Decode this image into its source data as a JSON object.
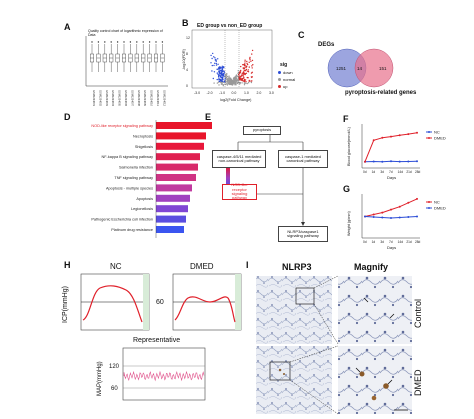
{
  "panels": {
    "A": {
      "label": "A",
      "title": "Quality control chart of logarithmic expression of Data",
      "samples": [
        "GSM1234001",
        "GSM1234002",
        "GSM1234003",
        "GSM1234004",
        "GSM1234005",
        "GSM1234006",
        "GSM1234007",
        "GSM1234008",
        "GSM1234009",
        "GSM1234010",
        "GSM1234011",
        "GSM1234012"
      ]
    },
    "B": {
      "label": "B",
      "title": "ED group vs non_ED group",
      "xlabel": "log2(Fold Change)",
      "ylabel": "-log10(FDR)",
      "legend_title": "sig",
      "legend_items": [
        {
          "name": "down",
          "color": "#2b4cd6"
        },
        {
          "name": "normal",
          "color": "#999999"
        },
        {
          "name": "up",
          "color": "#d62b2b"
        }
      ],
      "xticks": [
        "-3.0",
        "-2.0",
        "-1.0",
        "0.0",
        "1.0",
        "2.0",
        "3.0"
      ],
      "yticks": [
        "0",
        "4",
        "8",
        "12"
      ]
    },
    "C": {
      "label": "C",
      "set1_label": "DEGs",
      "set2_label": "pyroptosis-related genes",
      "left_count": "1251",
      "overlap_count": "14",
      "right_count": "151"
    },
    "D": {
      "label": "D",
      "pathways": [
        {
          "name": "NOD-like receptor signaling pathway",
          "highlight": true
        },
        {
          "name": "Necroptosis",
          "highlight": false
        },
        {
          "name": "Shigellosis",
          "highlight": false
        },
        {
          "name": "NF-kappa B signaling pathway",
          "highlight": false
        },
        {
          "name": "Salmonella infection",
          "highlight": false
        },
        {
          "name": "TNF signaling pathway",
          "highlight": false
        },
        {
          "name": "Apoptosis - multiple species",
          "highlight": false
        },
        {
          "name": "Apoptosis",
          "highlight": false
        },
        {
          "name": "Legionellosis",
          "highlight": false
        },
        {
          "name": "Pathogenic Escherichia coli infection",
          "highlight": false
        },
        {
          "name": "Platinum drug resistance",
          "highlight": false
        }
      ],
      "bar_values": [
        14,
        12.5,
        12,
        11,
        10.5,
        10,
        9,
        8.5,
        8,
        7.5,
        7
      ],
      "bar_colors": [
        "#e8152a",
        "#e8152a",
        "#e8173a",
        "#e02050",
        "#d82a6a",
        "#d03384",
        "#c03aa0",
        "#a040c0",
        "#8046d4",
        "#5a4ee0",
        "#3b55f0"
      ],
      "xmax": 15
    },
    "E": {
      "label": "E",
      "top": "pyroptosis",
      "left": "caspase-4/5/11 mediated non-canonical pathway",
      "right": "caspase-1 mediated canonical pathway",
      "nod": "NOD-like receptor signaling pathway",
      "nlrp3": "NLRP3/caspase1 signaling pathway"
    },
    "F": {
      "label": "F",
      "ylabel": "Blood glucose(mmol/L)",
      "xlabel": "Days",
      "legend": [
        "NC",
        "DMED"
      ],
      "days": [
        "0d",
        "1d",
        "3d",
        "7d",
        "14d",
        "21d",
        "28d"
      ],
      "nc": [
        5,
        5.2,
        5,
        5.3,
        5.1,
        5.2,
        5.3
      ],
      "dmed": [
        5,
        22,
        24,
        25,
        26,
        27,
        28
      ],
      "ymax": 35
    },
    "G": {
      "label": "G",
      "ylabel": "Weight (g/mm)",
      "xlabel": "Days",
      "legend": [
        "NC",
        "DMED"
      ],
      "days": [
        "0d",
        "1d",
        "3d",
        "7d",
        "14d",
        "21d",
        "28d"
      ],
      "nc": [
        220,
        240,
        260,
        290,
        320,
        360,
        400
      ],
      "dmed": [
        220,
        215,
        210,
        205,
        210,
        215,
        220
      ],
      "ymax": 450
    },
    "H": {
      "label": "H",
      "nc_title": "NC",
      "dmed_title": "DMED",
      "icp_label": "ICP(mmHg)",
      "icp_tick": "60",
      "rep_title": "Representative",
      "map_label": "MAP(mmHg)",
      "map_tick_hi": "120",
      "map_tick_lo": "60"
    },
    "I": {
      "label": "I",
      "col1": "NLRP3",
      "col2": "Magnify",
      "row1": "Control",
      "row2": "DMED"
    }
  }
}
